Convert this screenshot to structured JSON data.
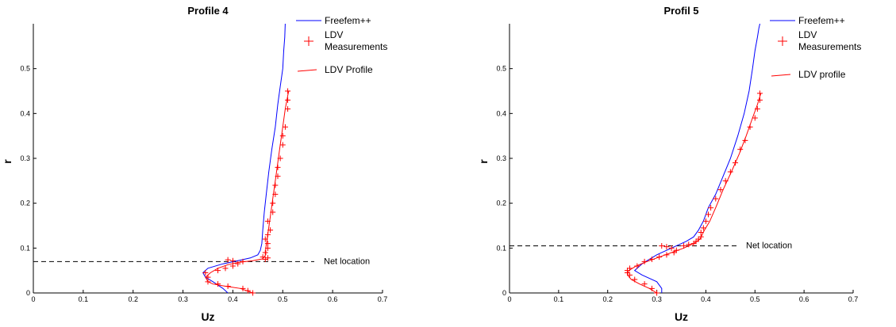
{
  "chart_data": [
    {
      "type": "line",
      "title": "Profile 4",
      "xlabel": "Uz",
      "ylabel": "r",
      "xlim": [
        0,
        0.7
      ],
      "ylim": [
        0,
        0.6
      ],
      "xticks": [
        "0",
        "0.1",
        "0.2",
        "0.3",
        "0.4",
        "0.5",
        "0.6",
        "0.7"
      ],
      "yticks": [
        "0",
        "0.1",
        "0.2",
        "0.3",
        "0.4",
        "0.5"
      ],
      "grid": false,
      "legend_position": "top-right",
      "legend": [
        "Freefem++",
        "LDV Measurements",
        "LDV Profile"
      ],
      "annotation": "Net location",
      "net_location_r": 0.07,
      "series": [
        {
          "name": "Freefem++",
          "color": "#0000ff",
          "style": "line",
          "x": [
            0.39,
            0.38,
            0.36,
            0.345,
            0.34,
            0.35,
            0.38,
            0.41,
            0.435,
            0.45,
            0.455,
            0.458,
            0.46,
            0.463,
            0.467,
            0.472,
            0.478,
            0.485,
            0.49,
            0.495,
            0.5,
            0.502,
            0.504,
            0.505
          ],
          "y": [
            0.0,
            0.01,
            0.025,
            0.035,
            0.045,
            0.055,
            0.065,
            0.072,
            0.078,
            0.085,
            0.095,
            0.11,
            0.14,
            0.18,
            0.22,
            0.27,
            0.32,
            0.37,
            0.42,
            0.46,
            0.5,
            0.54,
            0.57,
            0.6
          ]
        },
        {
          "name": "LDV Measurements",
          "color": "#ff0000",
          "style": "marker",
          "x": [
            0.44,
            0.43,
            0.42,
            0.39,
            0.37,
            0.35,
            0.35,
            0.345,
            0.37,
            0.385,
            0.4,
            0.41,
            0.42,
            0.4,
            0.39,
            0.465,
            0.47,
            0.46,
            0.465,
            0.47,
            0.47,
            0.465,
            0.47,
            0.475,
            0.47,
            0.48,
            0.48,
            0.485,
            0.485,
            0.49,
            0.49,
            0.495,
            0.5,
            0.5,
            0.505,
            0.51,
            0.51,
            0.51
          ],
          "y": [
            0.0,
            0.005,
            0.01,
            0.015,
            0.02,
            0.025,
            0.035,
            0.045,
            0.05,
            0.055,
            0.06,
            0.065,
            0.07,
            0.072,
            0.074,
            0.075,
            0.078,
            0.08,
            0.09,
            0.1,
            0.11,
            0.12,
            0.13,
            0.14,
            0.16,
            0.18,
            0.2,
            0.22,
            0.24,
            0.26,
            0.28,
            0.3,
            0.33,
            0.35,
            0.37,
            0.41,
            0.43,
            0.45
          ]
        },
        {
          "name": "LDV Profile",
          "color": "#ff0000",
          "style": "line",
          "x": [
            0.44,
            0.415,
            0.385,
            0.36,
            0.35,
            0.345,
            0.355,
            0.37,
            0.39,
            0.41,
            0.44,
            0.46,
            0.466,
            0.466,
            0.47,
            0.475,
            0.48,
            0.485,
            0.49,
            0.495,
            0.5,
            0.505,
            0.51,
            0.512
          ],
          "y": [
            0.0,
            0.01,
            0.015,
            0.02,
            0.025,
            0.035,
            0.045,
            0.055,
            0.063,
            0.068,
            0.072,
            0.076,
            0.085,
            0.1,
            0.13,
            0.17,
            0.21,
            0.25,
            0.29,
            0.33,
            0.37,
            0.41,
            0.44,
            0.45
          ]
        }
      ]
    },
    {
      "type": "line",
      "title": "Profil 5",
      "xlabel": "Uz",
      "ylabel": "r",
      "xlim": [
        0,
        0.7
      ],
      "ylim": [
        0,
        0.6
      ],
      "xticks": [
        "0",
        "0.1",
        "0.2",
        "0.3",
        "0.4",
        "0.5",
        "0.6",
        "0.7"
      ],
      "yticks": [
        "0",
        "0.1",
        "0.2",
        "0.3",
        "0.4",
        "0.5"
      ],
      "grid": false,
      "legend_position": "top-right",
      "legend": [
        "Freefem++",
        "LDV Measurements",
        "LDV profile"
      ],
      "annotation": "Net location",
      "net_location_r": 0.105,
      "series": [
        {
          "name": "Freefem++",
          "color": "#0000ff",
          "style": "line",
          "x": [
            0.31,
            0.31,
            0.3,
            0.27,
            0.255,
            0.27,
            0.3,
            0.33,
            0.36,
            0.375,
            0.385,
            0.395,
            0.405,
            0.42,
            0.435,
            0.45,
            0.465,
            0.478,
            0.488,
            0.495,
            0.5,
            0.505,
            0.508,
            0.51
          ],
          "y": [
            0.0,
            0.01,
            0.025,
            0.04,
            0.05,
            0.065,
            0.085,
            0.1,
            0.115,
            0.125,
            0.14,
            0.16,
            0.19,
            0.22,
            0.26,
            0.3,
            0.35,
            0.4,
            0.45,
            0.5,
            0.54,
            0.57,
            0.59,
            0.6
          ]
        },
        {
          "name": "LDV Measurements",
          "color": "#ff0000",
          "style": "marker",
          "x": [
            0.3,
            0.29,
            0.275,
            0.255,
            0.245,
            0.24,
            0.24,
            0.245,
            0.26,
            0.275,
            0.29,
            0.305,
            0.32,
            0.335,
            0.34,
            0.33,
            0.32,
            0.31,
            0.355,
            0.365,
            0.375,
            0.38,
            0.385,
            0.39,
            0.39,
            0.395,
            0.4,
            0.405,
            0.41,
            0.42,
            0.43,
            0.44,
            0.45,
            0.46,
            0.47,
            0.48,
            0.49,
            0.5,
            0.505,
            0.51,
            0.51
          ],
          "y": [
            0.0,
            0.01,
            0.02,
            0.03,
            0.04,
            0.045,
            0.05,
            0.055,
            0.06,
            0.07,
            0.075,
            0.08,
            0.085,
            0.09,
            0.095,
            0.1,
            0.103,
            0.105,
            0.105,
            0.108,
            0.11,
            0.115,
            0.12,
            0.125,
            0.135,
            0.145,
            0.16,
            0.175,
            0.19,
            0.21,
            0.23,
            0.25,
            0.27,
            0.29,
            0.32,
            0.34,
            0.37,
            0.39,
            0.41,
            0.43,
            0.445
          ]
        },
        {
          "name": "LDV profile",
          "color": "#ff0000",
          "style": "line",
          "x": [
            0.3,
            0.285,
            0.265,
            0.248,
            0.24,
            0.243,
            0.258,
            0.28,
            0.305,
            0.33,
            0.355,
            0.375,
            0.388,
            0.397,
            0.408,
            0.42,
            0.435,
            0.452,
            0.468,
            0.482,
            0.495,
            0.505,
            0.512
          ],
          "y": [
            0.0,
            0.01,
            0.02,
            0.03,
            0.04,
            0.05,
            0.06,
            0.07,
            0.08,
            0.09,
            0.1,
            0.11,
            0.12,
            0.14,
            0.16,
            0.19,
            0.23,
            0.27,
            0.31,
            0.35,
            0.39,
            0.42,
            0.445
          ]
        }
      ]
    }
  ]
}
